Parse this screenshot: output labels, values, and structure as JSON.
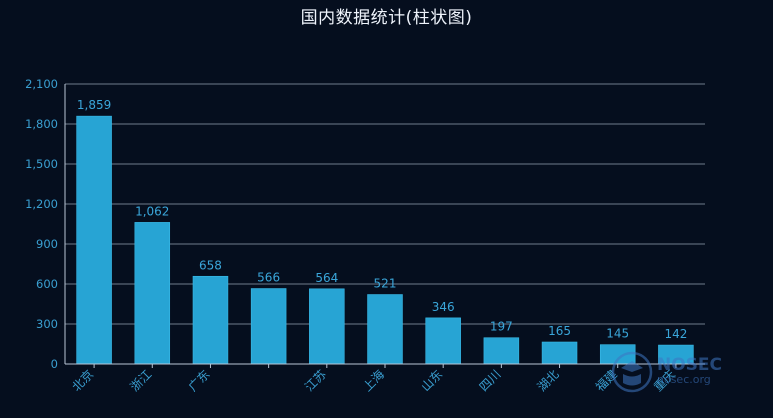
{
  "chart_data": {
    "type": "bar",
    "title": "国内数据统计(柱状图)",
    "categories": [
      "北京",
      "浙江",
      "广东",
      "",
      "江苏",
      "上海",
      "山东",
      "四川",
      "湖北",
      "福建",
      "重庆"
    ],
    "values": [
      1859,
      1062,
      658,
      566,
      564,
      521,
      346,
      197,
      165,
      145,
      142
    ],
    "data_labels": [
      "1,859",
      "1,062",
      "658",
      "566",
      "564",
      "521",
      "346",
      "197",
      "165",
      "145",
      "142"
    ],
    "y_ticks": [
      0,
      300,
      600,
      900,
      1200,
      1500,
      1800,
      2100
    ],
    "y_tick_labels": [
      "0",
      "300",
      "600",
      "900",
      "1,200",
      "1,500",
      "1,800",
      "2,100"
    ],
    "ylim": [
      0,
      2100
    ],
    "xlabel": "",
    "ylabel": "",
    "grid": true,
    "legend": "none"
  },
  "colors": {
    "background": "#050e1e",
    "bar": "#27a4d4",
    "bar_edge": "#3bbbe8",
    "grid": "#b9c6d6",
    "axis_text": "#3a9fd1",
    "data_label": "#3aa6da",
    "title": "#eef3fb"
  },
  "watermark": {
    "name": "NOSEC",
    "site": "nosec.org",
    "icon": "hat-and-scarf-logo"
  }
}
